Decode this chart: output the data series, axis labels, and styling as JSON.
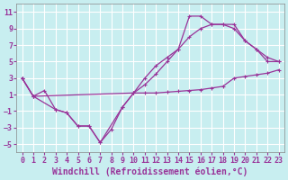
{
  "background_color": "#c8eef0",
  "grid_color": "#ffffff",
  "line_color": "#993399",
  "xlabel": "Windchill (Refroidissement éolien,°C)",
  "xlabel_fontsize": 7.0,
  "tick_fontsize": 6.0,
  "xlim": [
    -0.5,
    23.5
  ],
  "ylim": [
    -6,
    12
  ],
  "yticks": [
    -5,
    -3,
    -1,
    1,
    3,
    5,
    7,
    9,
    11
  ],
  "xticks": [
    0,
    1,
    2,
    3,
    4,
    5,
    6,
    7,
    8,
    9,
    10,
    11,
    12,
    13,
    14,
    15,
    16,
    17,
    18,
    19,
    20,
    21,
    22,
    23
  ],
  "series1_x": [
    0,
    1,
    2,
    3,
    4,
    5,
    6,
    7,
    8,
    9,
    10,
    11,
    12,
    13,
    14,
    15,
    16,
    17,
    18,
    19,
    20,
    21,
    22,
    23
  ],
  "series1_y": [
    3.0,
    0.8,
    1.5,
    -0.8,
    -1.2,
    -2.8,
    -2.8,
    -4.8,
    -3.2,
    -0.5,
    1.2,
    1.2,
    1.2,
    1.3,
    1.4,
    1.5,
    1.6,
    1.8,
    2.0,
    3.0,
    3.2,
    3.4,
    3.6,
    4.0
  ],
  "series2_x": [
    0,
    1,
    3,
    4,
    5,
    6,
    7,
    9,
    10,
    11,
    12,
    13,
    14,
    15,
    16,
    17,
    18,
    19,
    20,
    21,
    22,
    23
  ],
  "series2_y": [
    3.0,
    0.8,
    -0.8,
    -1.2,
    -2.8,
    -2.8,
    -4.8,
    -0.5,
    1.2,
    3.0,
    4.5,
    5.5,
    6.5,
    10.5,
    10.5,
    9.5,
    9.5,
    9.5,
    7.5,
    6.5,
    5.0,
    5.0
  ],
  "series3_x": [
    0,
    1,
    10,
    11,
    12,
    13,
    14,
    15,
    16,
    17,
    18,
    19,
    20,
    21,
    22,
    23
  ],
  "series3_y": [
    3.0,
    0.8,
    1.2,
    2.2,
    3.5,
    5.0,
    6.5,
    8.0,
    9.0,
    9.5,
    9.5,
    9.0,
    7.5,
    6.5,
    5.5,
    5.0
  ]
}
